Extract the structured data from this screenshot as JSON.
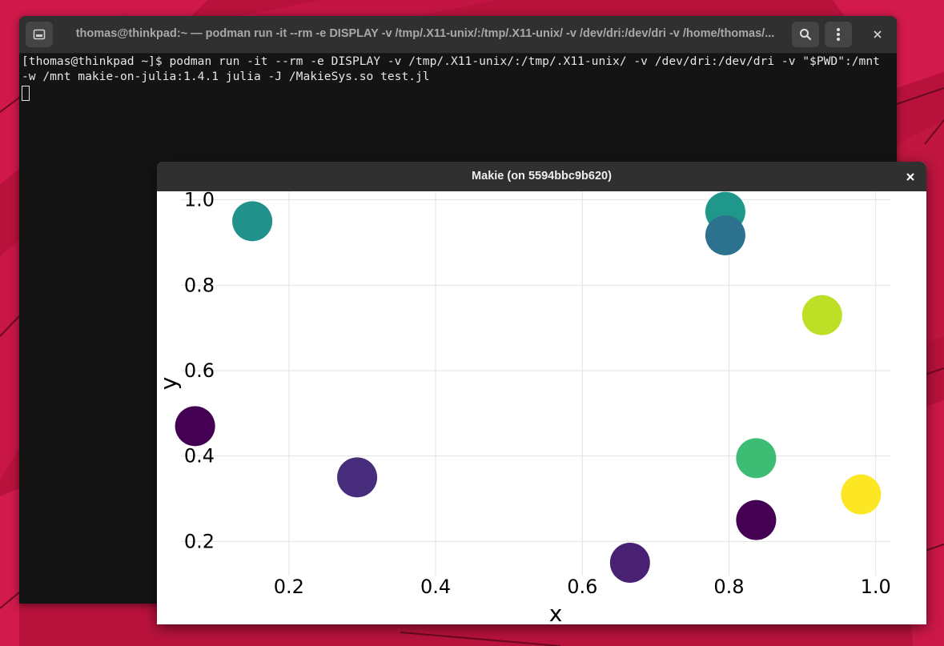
{
  "terminal": {
    "title": "thomas@thinkpad:~ — podman run -it --rm -e DISPLAY -v /tmp/.X11-unix/:/tmp/.X11-unix/ -v /dev/dri:/dev/dri -v /home/thomas/...",
    "command_line": "[thomas@thinkpad ~]$ podman run -it --rm -e DISPLAY -v /tmp/.X11-unix/:/tmp/.X11-unix/ -v /dev/dri:/dev/dri -v \"$PWD\":/mnt -w /mnt makie-on-julia:1.4.1 julia -J /MakieSys.so test.jl",
    "icons": {
      "new_tab": "new-tab-icon",
      "search": "search-icon",
      "menu": "kebab-menu-icon",
      "close": "close-icon"
    }
  },
  "makie_window": {
    "title": "Makie (on 5594bbc9b620)",
    "close_icon": "close-icon"
  },
  "chart_data": {
    "type": "scatter",
    "xlabel": "x",
    "ylabel": "y",
    "xticks": [
      "0.2",
      "0.4",
      "0.6",
      "0.8",
      "1.0"
    ],
    "yticks": [
      "0.2",
      "0.4",
      "0.6",
      "0.8",
      "1.0"
    ],
    "xlim": [
      0.02,
      1.02
    ],
    "ylim": [
      0.12,
      1.02
    ],
    "grid": true,
    "colormap": "viridis",
    "points": [
      {
        "x": 0.15,
        "y": 0.95,
        "color": "#21918c"
      },
      {
        "x": 0.795,
        "y": 0.972,
        "color": "#1f988b"
      },
      {
        "x": 0.795,
        "y": 0.917,
        "color": "#2c728e"
      },
      {
        "x": 0.927,
        "y": 0.73,
        "color": "#bddf26"
      },
      {
        "x": 0.072,
        "y": 0.47,
        "color": "#440154"
      },
      {
        "x": 0.293,
        "y": 0.35,
        "color": "#472d7b"
      },
      {
        "x": 0.837,
        "y": 0.395,
        "color": "#3dbc74"
      },
      {
        "x": 0.98,
        "y": 0.31,
        "color": "#fde725"
      },
      {
        "x": 0.837,
        "y": 0.25,
        "color": "#440154"
      },
      {
        "x": 0.665,
        "y": 0.15,
        "color": "#482173"
      }
    ]
  }
}
